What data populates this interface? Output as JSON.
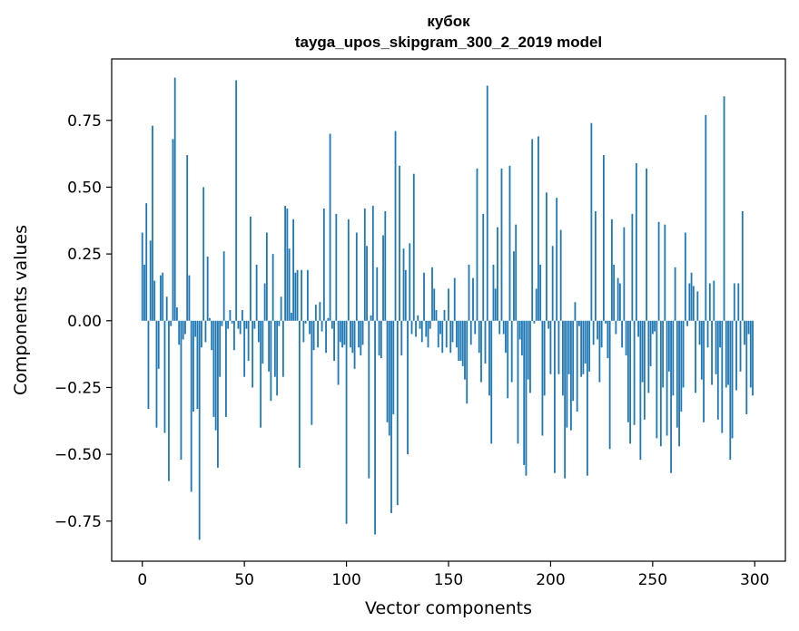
{
  "chart_data": {
    "type": "bar",
    "title": "кубок",
    "subtitle": "tayga_upos_skipgram_300_2_2019 model",
    "xlabel": "Vector components",
    "ylabel": "Components values",
    "xlim": [
      -15,
      315
    ],
    "ylim": [
      -0.9,
      0.98
    ],
    "xticks": [
      0,
      50,
      100,
      150,
      200,
      250,
      300
    ],
    "yticks": [
      -0.75,
      -0.5,
      -0.25,
      0.0,
      0.25,
      0.5,
      0.75
    ],
    "ytick_labels": [
      "−0.75",
      "−0.50",
      "−0.25",
      "0.00",
      "0.25",
      "0.50",
      "0.75"
    ],
    "grid": false,
    "bar_color": "#1f77b4",
    "values": [
      0.33,
      0.21,
      0.44,
      -0.33,
      0.3,
      0.73,
      0.15,
      -0.4,
      -0.18,
      0.17,
      0.18,
      -0.42,
      0.09,
      -0.6,
      -0.02,
      0.68,
      0.91,
      0.05,
      -0.09,
      -0.52,
      -0.07,
      -0.05,
      0.62,
      0.17,
      -0.64,
      -0.34,
      -0.06,
      -0.33,
      -0.82,
      -0.1,
      0.5,
      -0.08,
      0.24,
      0.01,
      -0.11,
      -0.36,
      -0.41,
      -0.55,
      -0.21,
      -0.02,
      0.26,
      -0.36,
      -0.03,
      0.04,
      -0.01,
      -0.11,
      0.9,
      -0.03,
      -0.05,
      0.04,
      -0.21,
      -0.03,
      -0.15,
      0.39,
      -0.25,
      -0.03,
      0.21,
      -0.08,
      -0.4,
      -0.16,
      0.14,
      0.33,
      -0.19,
      -0.3,
      0.25,
      -0.21,
      -0.28,
      -0.02,
      0.09,
      -0.21,
      0.43,
      0.42,
      0.27,
      0.03,
      0.38,
      0.18,
      0.19,
      -0.55,
      0.19,
      -0.08,
      -0.01,
      0.19,
      -0.05,
      -0.39,
      -0.11,
      0.06,
      -0.1,
      0.07,
      -0.04,
      0.42,
      -0.12,
      0.01,
      0.7,
      -0.03,
      -0.15,
      0.4,
      -0.24,
      -0.08,
      -0.1,
      -0.09,
      -0.76,
      0.38,
      -0.1,
      -0.12,
      -0.18,
      0.33,
      -0.1,
      -0.13,
      -0.09,
      0.42,
      0.28,
      -0.59,
      0.02,
      0.43,
      -0.8,
      0.2,
      -0.13,
      -0.14,
      0.32,
      0.41,
      -0.38,
      -0.43,
      -0.72,
      -0.35,
      0.71,
      -0.69,
      0.58,
      -0.13,
      0.27,
      0.19,
      -0.5,
      0.29,
      -0.05,
      0.55,
      -0.06,
      0.02,
      -0.03,
      -0.08,
      0.18,
      -0.06,
      -0.1,
      -0.03,
      0.2,
      0.12,
      0.04,
      -0.1,
      -0.05,
      -0.12,
      0.04,
      -0.1,
      0.12,
      -0.12,
      -0.08,
      0.16,
      -0.1,
      -0.15,
      -0.15,
      -0.17,
      -0.22,
      -0.31,
      0.21,
      -0.09,
      0.16,
      -0.05,
      0.57,
      -0.12,
      -0.23,
      0.4,
      -0.16,
      0.88,
      -0.28,
      -0.46,
      0.21,
      0.12,
      0.35,
      -0.05,
      0.57,
      -0.05,
      -0.12,
      -0.29,
      0.58,
      -0.23,
      0.26,
      0.36,
      -0.46,
      -0.07,
      -0.13,
      -0.54,
      -0.58,
      -0.22,
      -0.27,
      0.68,
      -0.01,
      0.12,
      0.69,
      0.21,
      -0.43,
      -0.28,
      0.48,
      -0.03,
      -0.2,
      0.28,
      -0.57,
      0.46,
      -0.2,
      0.34,
      -0.28,
      -0.59,
      -0.4,
      -0.2,
      -0.41,
      -0.3,
      0.07,
      -0.34,
      -0.02,
      -0.21,
      -0.2,
      -0.16,
      -0.58,
      -0.19,
      0.74,
      -0.09,
      0.41,
      -0.07,
      -0.23,
      -0.1,
      0.62,
      -0.01,
      -0.14,
      -0.48,
      0.38,
      0.21,
      -0.05,
      0.16,
      0.14,
      -0.1,
      0.35,
      -0.13,
      -0.38,
      -0.46,
      0.4,
      -0.39,
      0.59,
      -0.06,
      -0.52,
      -0.23,
      -0.37,
      0.57,
      -0.27,
      -0.17,
      -0.05,
      -0.04,
      -0.44,
      0.37,
      -0.47,
      -0.25,
      0.36,
      -0.43,
      -0.19,
      -0.57,
      -0.28,
      0.2,
      -0.4,
      -0.47,
      -0.34,
      -0.25,
      0.33,
      -0.02,
      0.14,
      0.18,
      0.13,
      -0.27,
      0.11,
      -0.09,
      -0.22,
      -0.38,
      0.77,
      -0.1,
      0.14,
      -0.24,
      0.15,
      -0.2,
      -0.37,
      -0.1,
      -0.42,
      0.84,
      -0.25,
      -0.24,
      -0.52,
      -0.44,
      0.14,
      -0.26,
      0.14,
      -0.19,
      0.41,
      -0.09,
      -0.35,
      -0.05,
      -0.25,
      -0.28
    ]
  }
}
